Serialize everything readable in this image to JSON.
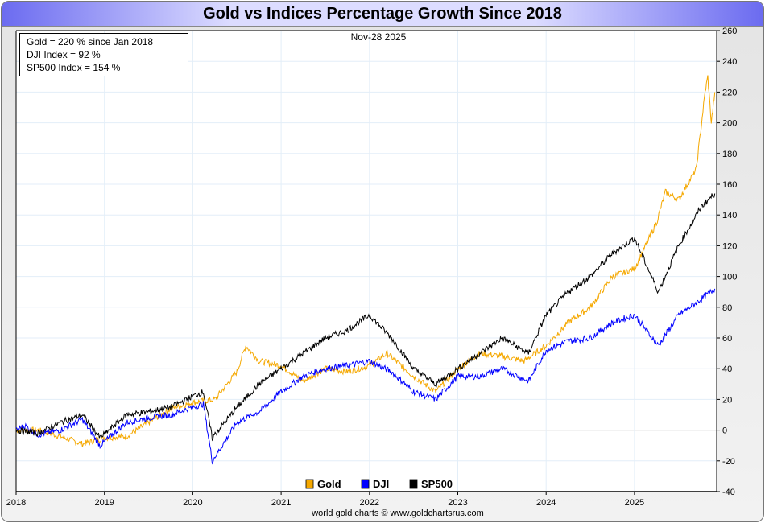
{
  "chart_data": {
    "type": "line",
    "title": "Gold vs Indices Percentage Growth Since 2018",
    "date_label": "Nov-28  2025",
    "credit": "world gold charts © www.goldchartsrus.com",
    "summary": [
      "Gold = 220 % since Jan 2018",
      "DJI Index = 92 %",
      "SP500 Index = 154 %"
    ],
    "xlim": [
      2018,
      2025.95
    ],
    "ylim": [
      -40,
      260
    ],
    "x_ticks": [
      "2018",
      "2019",
      "2020",
      "2021",
      "2022",
      "2023",
      "2024",
      "2025"
    ],
    "y_ticks": [
      -40,
      -20,
      0,
      20,
      40,
      60,
      80,
      100,
      120,
      140,
      160,
      180,
      200,
      220,
      240,
      260
    ],
    "grid": true,
    "legend_position": "bottom-center",
    "series": [
      {
        "name": "Gold",
        "color": "#f5a800",
        "x": [
          2018.0,
          2018.25,
          2018.5,
          2018.75,
          2019.0,
          2019.25,
          2019.5,
          2019.75,
          2020.0,
          2020.25,
          2020.5,
          2020.6,
          2020.75,
          2021.0,
          2021.25,
          2021.5,
          2021.75,
          2022.0,
          2022.2,
          2022.5,
          2022.75,
          2023.0,
          2023.25,
          2023.5,
          2023.75,
          2024.0,
          2024.25,
          2024.5,
          2024.75,
          2025.0,
          2025.25,
          2025.35,
          2025.5,
          2025.7,
          2025.8,
          2025.83,
          2025.87,
          2025.91
        ],
        "y": [
          0,
          0,
          -4,
          -9,
          -5,
          -4,
          5,
          14,
          18,
          20,
          38,
          55,
          45,
          42,
          32,
          40,
          38,
          42,
          50,
          35,
          25,
          40,
          50,
          48,
          45,
          55,
          70,
          80,
          100,
          105,
          135,
          155,
          150,
          170,
          220,
          230,
          200,
          220
        ]
      },
      {
        "name": "DJI",
        "color": "#0000ff",
        "x": [
          2018.0,
          2018.1,
          2018.25,
          2018.5,
          2018.75,
          2018.95,
          2019.25,
          2019.5,
          2019.75,
          2020.0,
          2020.12,
          2020.22,
          2020.5,
          2020.75,
          2021.0,
          2021.25,
          2021.5,
          2021.75,
          2022.0,
          2022.25,
          2022.5,
          2022.75,
          2023.0,
          2023.25,
          2023.5,
          2023.8,
          2024.0,
          2024.25,
          2024.5,
          2024.75,
          2025.0,
          2025.27,
          2025.5,
          2025.75,
          2025.91
        ],
        "y": [
          0,
          3,
          -3,
          0,
          7,
          -10,
          5,
          8,
          10,
          15,
          17,
          -20,
          5,
          12,
          25,
          35,
          40,
          42,
          45,
          38,
          25,
          20,
          35,
          35,
          40,
          32,
          52,
          58,
          60,
          70,
          75,
          55,
          75,
          85,
          92
        ]
      },
      {
        "name": "SP500",
        "color": "#000000",
        "x": [
          2018.0,
          2018.25,
          2018.5,
          2018.75,
          2018.95,
          2019.25,
          2019.5,
          2019.75,
          2020.0,
          2020.12,
          2020.22,
          2020.5,
          2020.75,
          2021.0,
          2021.25,
          2021.5,
          2021.75,
          2022.0,
          2022.25,
          2022.5,
          2022.75,
          2023.0,
          2023.25,
          2023.5,
          2023.8,
          2024.0,
          2024.25,
          2024.5,
          2024.75,
          2025.0,
          2025.27,
          2025.5,
          2025.75,
          2025.91
        ],
        "y": [
          0,
          -2,
          5,
          10,
          -5,
          10,
          12,
          15,
          22,
          25,
          -5,
          15,
          30,
          40,
          50,
          60,
          65,
          75,
          60,
          40,
          30,
          40,
          50,
          60,
          50,
          75,
          90,
          100,
          115,
          125,
          90,
          120,
          145,
          154
        ]
      }
    ]
  }
}
